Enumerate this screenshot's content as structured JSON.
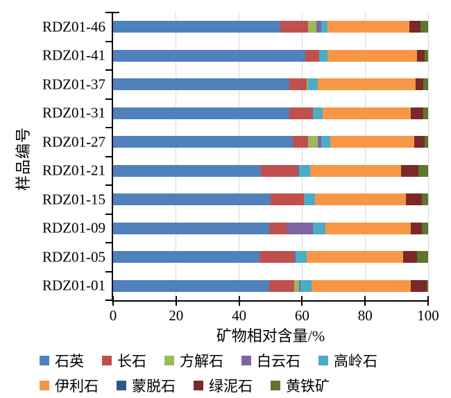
{
  "chart_data": {
    "type": "bar",
    "variant": "horizontal-stacked",
    "title": "",
    "xlabel": "矿物相对含量/%",
    "ylabel": "样品编号",
    "xlim": [
      0,
      100
    ],
    "xticks": [
      0,
      20,
      40,
      60,
      80,
      100
    ],
    "grid": "vertical-light-gray",
    "legend_position": "bottom",
    "categories": [
      "RDZ01-46",
      "RDZ01-41",
      "RDZ01-37",
      "RDZ01-31",
      "RDZ01-27",
      "RDZ01-21",
      "RDZ01-15",
      "RDZ01-09",
      "RDZ01-05",
      "RDZ01-01"
    ],
    "series": [
      {
        "name": "石英",
        "color": "#4F81BD",
        "values": [
          53,
          61,
          56,
          56,
          57,
          47,
          50,
          49.5,
          46.5,
          49.5
        ]
      },
      {
        "name": "长石",
        "color": "#C0504D",
        "values": [
          9,
          4.5,
          5.5,
          7.5,
          5,
          11.5,
          10.5,
          5.5,
          11,
          8
        ]
      },
      {
        "name": "方解石",
        "color": "#9BBB59",
        "values": [
          2.5,
          0,
          0.5,
          0,
          3,
          0,
          0,
          0,
          0,
          1.5
        ]
      },
      {
        "name": "白云石",
        "color": "#8064A2",
        "values": [
          1.5,
          0,
          0,
          0,
          1,
          0.5,
          0,
          8.5,
          0.5,
          0.5
        ]
      },
      {
        "name": "高岭石",
        "color": "#4BACC6",
        "values": [
          2,
          2.5,
          3,
          3,
          3,
          3.5,
          3.5,
          4,
          3.5,
          3.5
        ]
      },
      {
        "name": "伊利石",
        "color": "#F79646",
        "values": [
          26,
          28.5,
          31,
          28,
          26.5,
          29,
          29,
          27,
          30.5,
          31.5
        ]
      },
      {
        "name": "蒙脱石",
        "color": "#2C5985",
        "values": [
          0,
          0,
          0,
          0,
          0,
          0,
          0,
          0,
          0,
          0
        ]
      },
      {
        "name": "绿泥石",
        "color": "#7B2927",
        "values": [
          3.5,
          2.5,
          2.5,
          4,
          3.5,
          5.5,
          5,
          3.5,
          4.5,
          5
        ]
      },
      {
        "name": "黄铁矿",
        "color": "#5E7530",
        "values": [
          2.5,
          1,
          1.5,
          1.5,
          1,
          3,
          2,
          2,
          3.5,
          0.5
        ]
      }
    ],
    "legend_rows": [
      [
        0,
        1,
        2,
        3,
        4
      ],
      [
        5,
        6,
        7,
        8
      ]
    ],
    "colors": {
      "axis": "#000000",
      "gridline": "#d9d9d9",
      "background": "#ffffff"
    }
  }
}
